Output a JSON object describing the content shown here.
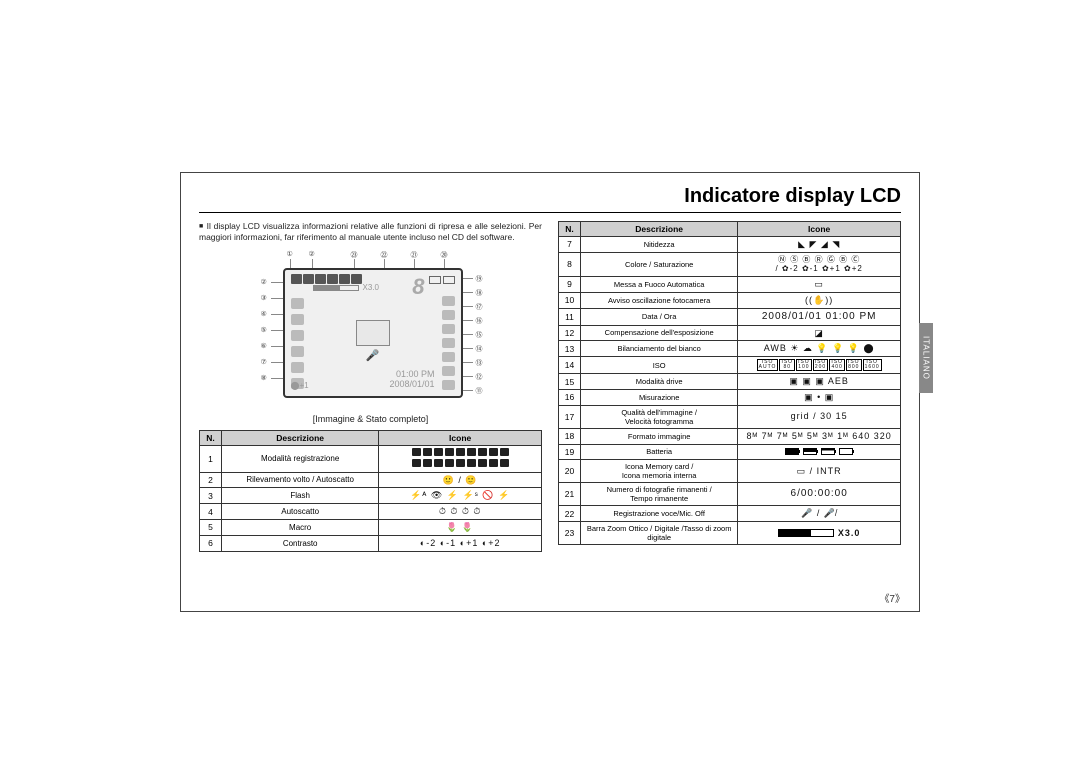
{
  "title": "Indicatore display LCD",
  "side_tab": "ITALIANO",
  "intro": "Il display LCD visualizza informazioni relative alle funzioni di ripresa e alle selezioni. Per maggiori informazioni, far riferimento al manuale utente incluso nel CD del software.",
  "caption": "[Immagine  &  Stato completo]",
  "lcd": {
    "x30": "X3.0",
    "eight": "8",
    "time": "01:00 PM",
    "date": "2008/01/01",
    "bl_prefix": "⬤+1",
    "callouts_top": [
      "①",
      "②",
      "㉓",
      "㉒",
      "㉑",
      "⑳"
    ],
    "callouts_left": [
      "②",
      "③",
      "④",
      "⑤",
      "⑥",
      "⑦",
      "⑧"
    ],
    "callouts_right": [
      "⑲",
      "⑱",
      "⑰",
      "⑯",
      "⑮",
      "⑭",
      "⑬",
      "⑫",
      "⑪"
    ]
  },
  "headers": {
    "n": "N.",
    "desc": "Descrizione",
    "ic": "Icone"
  },
  "left_rows": [
    {
      "n": "1",
      "desc": "Modalità registrazione",
      "ic": ""
    },
    {
      "n": "2",
      "desc": "Rilevamento volto / Autoscatto",
      "ic": "🙂 / 🙂"
    },
    {
      "n": "3",
      "desc": "Flash",
      "ic": "⚡ᴬ  👁  ⚡  ⚡ˢ  🚫  ⚡"
    },
    {
      "n": "4",
      "desc": "Autoscatto",
      "ic": "⏱  ⏱  ⏱  ⏱"
    },
    {
      "n": "5",
      "desc": "Macro",
      "ic": "🌷  🌷"
    },
    {
      "n": "6",
      "desc": "Contrasto",
      "ic": "◐-2  ◐-1  ◐+1  ◐+2"
    }
  ],
  "right_rows": [
    {
      "n": "7",
      "desc": "Nitidezza",
      "ic": "◣ ◤ ◢ ◥"
    },
    {
      "n": "8",
      "desc": "Colore / Saturazione",
      "ic_top": "Ⓝ Ⓢ Ⓑ Ⓡ Ⓖ Ⓑ Ⓒ",
      "ic_bot": "/ ✿-2  ✿-1  ✿+1  ✿+2"
    },
    {
      "n": "9",
      "desc": "Messa a Fuoco Automatica",
      "ic": "▭"
    },
    {
      "n": "10",
      "desc": "Avviso oscillazione fotocamera",
      "ic": "((✋))"
    },
    {
      "n": "11",
      "desc": "Data / Ora",
      "ic": "2008/01/01   01:00 PM"
    },
    {
      "n": "12",
      "desc": "Compensazione dell'esposizione",
      "ic": "◪"
    },
    {
      "n": "13",
      "desc": "Bilanciamento del bianco",
      "ic": "AWB ☀ ☁ 💡 💡 💡 ⬤"
    },
    {
      "n": "14",
      "desc": "ISO",
      "ic": "iso"
    },
    {
      "n": "15",
      "desc": "Modalità drive",
      "ic": "▣ ▣ ▣ AEB"
    },
    {
      "n": "16",
      "desc": "Misurazione",
      "ic": "▣ • ▣"
    },
    {
      "n": "17",
      "desc": "Qualità dell'immagine  /<br>Velocità fotogramma",
      "ic": "grid / 30 15"
    },
    {
      "n": "18",
      "desc": "Formato immagine",
      "ic": "8ᴹ 7ᴹ 7ᴹ 5ᴹ 5ᴹ 3ᴹ 1ᴹ 640 320"
    },
    {
      "n": "19",
      "desc": "Batteria",
      "ic": "batt"
    },
    {
      "n": "20",
      "desc": "Icona Memory card /<br>Icona memoria interna",
      "ic": "▭ / INTR"
    },
    {
      "n": "21",
      "desc": "Numero di fotografie rimanenti /<br>Tempo rimanente",
      "ic": "6/00:00:00"
    },
    {
      "n": "22",
      "desc": "Registrazione voce/Mic. Off",
      "ic": "🎤 / 🎤̸"
    },
    {
      "n": "23",
      "desc": "Barra  Zoom Ottico / Digitale /Tasso di zoom digitale",
      "ic": "zoom",
      "ic_suffix": "X3.0"
    }
  ],
  "pagenum": "《7》"
}
